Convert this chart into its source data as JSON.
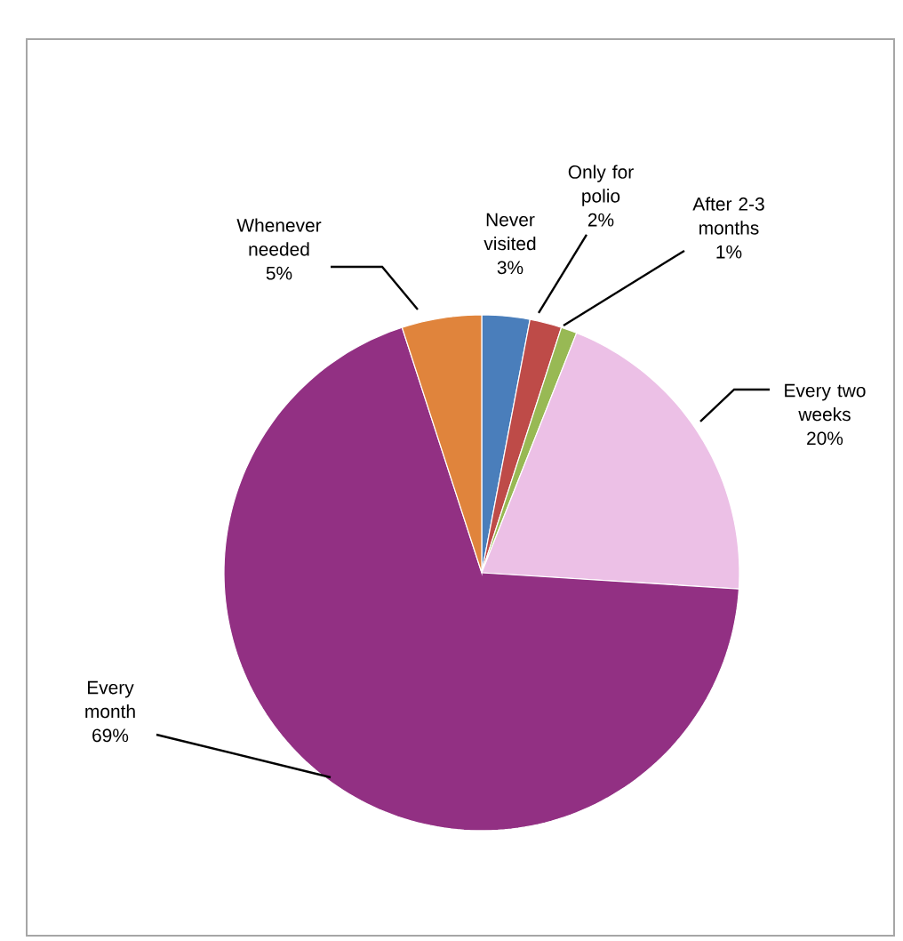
{
  "chart_data": {
    "type": "pie",
    "categories": [
      "Never visited",
      "Only for polio",
      "After 2-3 months",
      "Every two weeks",
      "Every month",
      "Whenever needed"
    ],
    "values": [
      3,
      2,
      1,
      20,
      69,
      5
    ],
    "value_labels": [
      "3%",
      "2%",
      "1%",
      "20%",
      "69%",
      "5%"
    ],
    "colors": [
      "#4a7ebb",
      "#be4b48",
      "#98b954",
      "#ecc0e6",
      "#923083",
      "#e0843c"
    ]
  }
}
